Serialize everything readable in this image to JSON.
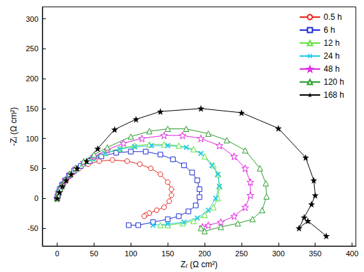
{
  "chart_data": {
    "type": "line",
    "x_label": "Zᵣ (Ω cm²)",
    "y_label": "-Zᵢ (Ω cm²)",
    "xlim": [
      -20,
      405
    ],
    "ylim": [
      -80,
      320
    ],
    "xticks": [
      0,
      50,
      100,
      150,
      200,
      250,
      300,
      350,
      400
    ],
    "yticks": [
      -50,
      0,
      50,
      100,
      150,
      200,
      250,
      300
    ],
    "grid": false,
    "legend": "upper right",
    "series": [
      {
        "name": "0.5 h",
        "color": "#e8211b",
        "marker": "open_circle",
        "x": [
          0,
          1,
          2,
          4,
          6,
          9,
          12,
          16,
          22,
          30,
          42,
          57,
          75,
          95,
          112,
          127,
          140,
          150,
          155,
          155,
          152,
          145,
          135,
          125,
          120,
          118
        ],
        "values": [
          0,
          5,
          10,
          15,
          20,
          25,
          30,
          36,
          43,
          50,
          57,
          62,
          64,
          62,
          57,
          50,
          40,
          27,
          15,
          5,
          -5,
          -15,
          -20,
          -25,
          -28,
          -30
        ]
      },
      {
        "name": "6 h",
        "color": "#1e2cd6",
        "marker": "open_square",
        "x": [
          0,
          1,
          2,
          4,
          7,
          11,
          16,
          23,
          32,
          44,
          60,
          80,
          100,
          120,
          140,
          157,
          172,
          183,
          190,
          193,
          193,
          188,
          178,
          165,
          150,
          130,
          110,
          97
        ],
        "values": [
          0,
          5,
          10,
          16,
          23,
          30,
          38,
          46,
          54,
          62,
          70,
          76,
          78,
          78,
          73,
          65,
          55,
          43,
          30,
          15,
          2,
          -12,
          -22,
          -30,
          -35,
          -40,
          -45,
          -45
        ]
      },
      {
        "name": "12 h",
        "color": "#5fe03a",
        "marker": "open_triangle",
        "x": [
          0,
          1,
          2,
          4,
          7,
          11,
          17,
          25,
          35,
          48,
          65,
          85,
          105,
          125,
          145,
          165,
          185,
          200,
          212,
          218,
          220,
          218,
          212,
          200,
          185,
          170,
          150,
          140
        ],
        "values": [
          0,
          5,
          10,
          16,
          23,
          31,
          40,
          49,
          58,
          67,
          76,
          83,
          88,
          90,
          90,
          88,
          82,
          70,
          55,
          40,
          20,
          0,
          -15,
          -28,
          -38,
          -42,
          -45,
          -45
        ]
      },
      {
        "name": "24 h",
        "color": "#1ec8e6",
        "marker": "x",
        "x": [
          0,
          1,
          2,
          4,
          7,
          11,
          17,
          25,
          35,
          48,
          65,
          85,
          105,
          128,
          150,
          175,
          195,
          210,
          218,
          220,
          215,
          205,
          190,
          172,
          150,
          130
        ],
        "values": [
          0,
          5,
          10,
          16,
          23,
          31,
          40,
          49,
          58,
          66,
          75,
          82,
          86,
          88,
          88,
          85,
          75,
          55,
          40,
          20,
          0,
          -20,
          -33,
          -40,
          -43,
          -45
        ]
      },
      {
        "name": "48 h",
        "color": "#e020e0",
        "marker": "open_star",
        "x": [
          0,
          1,
          2,
          4,
          7,
          11,
          17,
          25,
          36,
          50,
          68,
          90,
          115,
          145,
          170,
          195,
          220,
          240,
          255,
          262,
          262,
          255,
          240,
          222,
          205,
          197
        ],
        "values": [
          0,
          5,
          10,
          16,
          23,
          31,
          40,
          50,
          60,
          70,
          81,
          92,
          100,
          105,
          105,
          100,
          88,
          70,
          50,
          27,
          5,
          -15,
          -30,
          -40,
          -45,
          -48
        ]
      },
      {
        "name": "120 h",
        "color": "#2a9a2a",
        "marker": "open_triangle",
        "x": [
          0,
          1,
          2,
          4,
          7,
          11,
          17,
          25,
          36,
          50,
          68,
          100,
          125,
          150,
          175,
          205,
          230,
          255,
          275,
          283,
          284,
          278,
          265,
          245,
          222,
          200,
          195
        ],
        "values": [
          0,
          5,
          10,
          16,
          23,
          31,
          41,
          51,
          62,
          73,
          85,
          103,
          112,
          116,
          116,
          108,
          97,
          80,
          50,
          25,
          3,
          -20,
          -35,
          -42,
          -48,
          -55,
          -50
        ]
      },
      {
        "name": "168 h",
        "color": "#000000",
        "marker": "filled_star",
        "x": [
          0,
          3,
          7,
          12,
          19,
          27,
          40,
          55,
          78,
          107,
          140,
          195,
          250,
          300,
          337,
          348,
          350,
          345,
          335,
          328,
          340,
          365
        ],
        "values": [
          0,
          10,
          20,
          30,
          40,
          50,
          62,
          83,
          115,
          132,
          145,
          150,
          143,
          117,
          68,
          30,
          5,
          -10,
          -32,
          -50,
          -38,
          -63
        ]
      }
    ]
  }
}
